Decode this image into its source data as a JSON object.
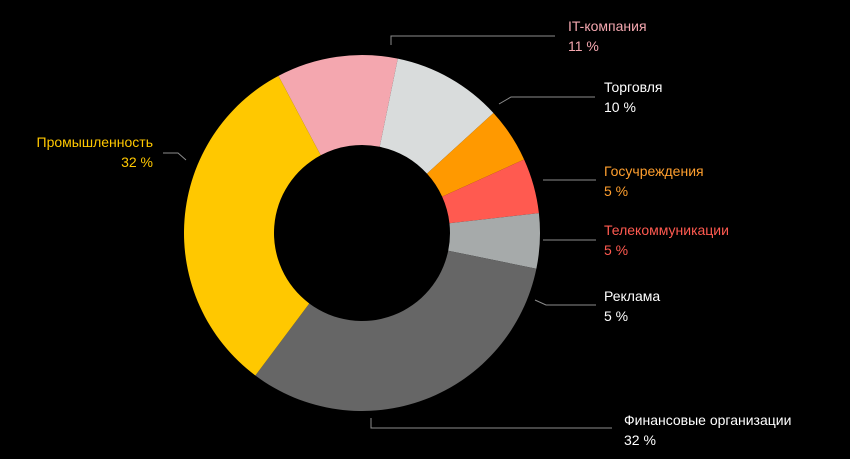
{
  "chart_data": {
    "type": "pie",
    "variant": "donut",
    "title": "",
    "value_suffix": " %",
    "slices": [
      {
        "label": "IT-компания",
        "value": 11,
        "color": "#F4A7AF",
        "text_color": "#F4A7AF"
      },
      {
        "label": "Торговля",
        "value": 10,
        "color": "#D9DCDC",
        "text_color": "#FFFFFF"
      },
      {
        "label": "Госучреждения",
        "value": 5,
        "color": "#FF9900",
        "text_color": "#FF9F2E"
      },
      {
        "label": "Телекоммуникации",
        "value": 5,
        "color": "#FF5A50",
        "text_color": "#FF5A50"
      },
      {
        "label": "Реклама",
        "value": 5,
        "color": "#A6AAAA",
        "text_color": "#FFFFFF"
      },
      {
        "label": "Финансовые организации",
        "value": 32,
        "color": "#666666",
        "text_color": "#FFFFFF"
      },
      {
        "label": "Промышленность",
        "value": 32,
        "color": "#FFC800",
        "text_color": "#FFC800"
      }
    ],
    "legend": "none",
    "background": "#000000",
    "leader_line_color": "#8C8C8C"
  }
}
